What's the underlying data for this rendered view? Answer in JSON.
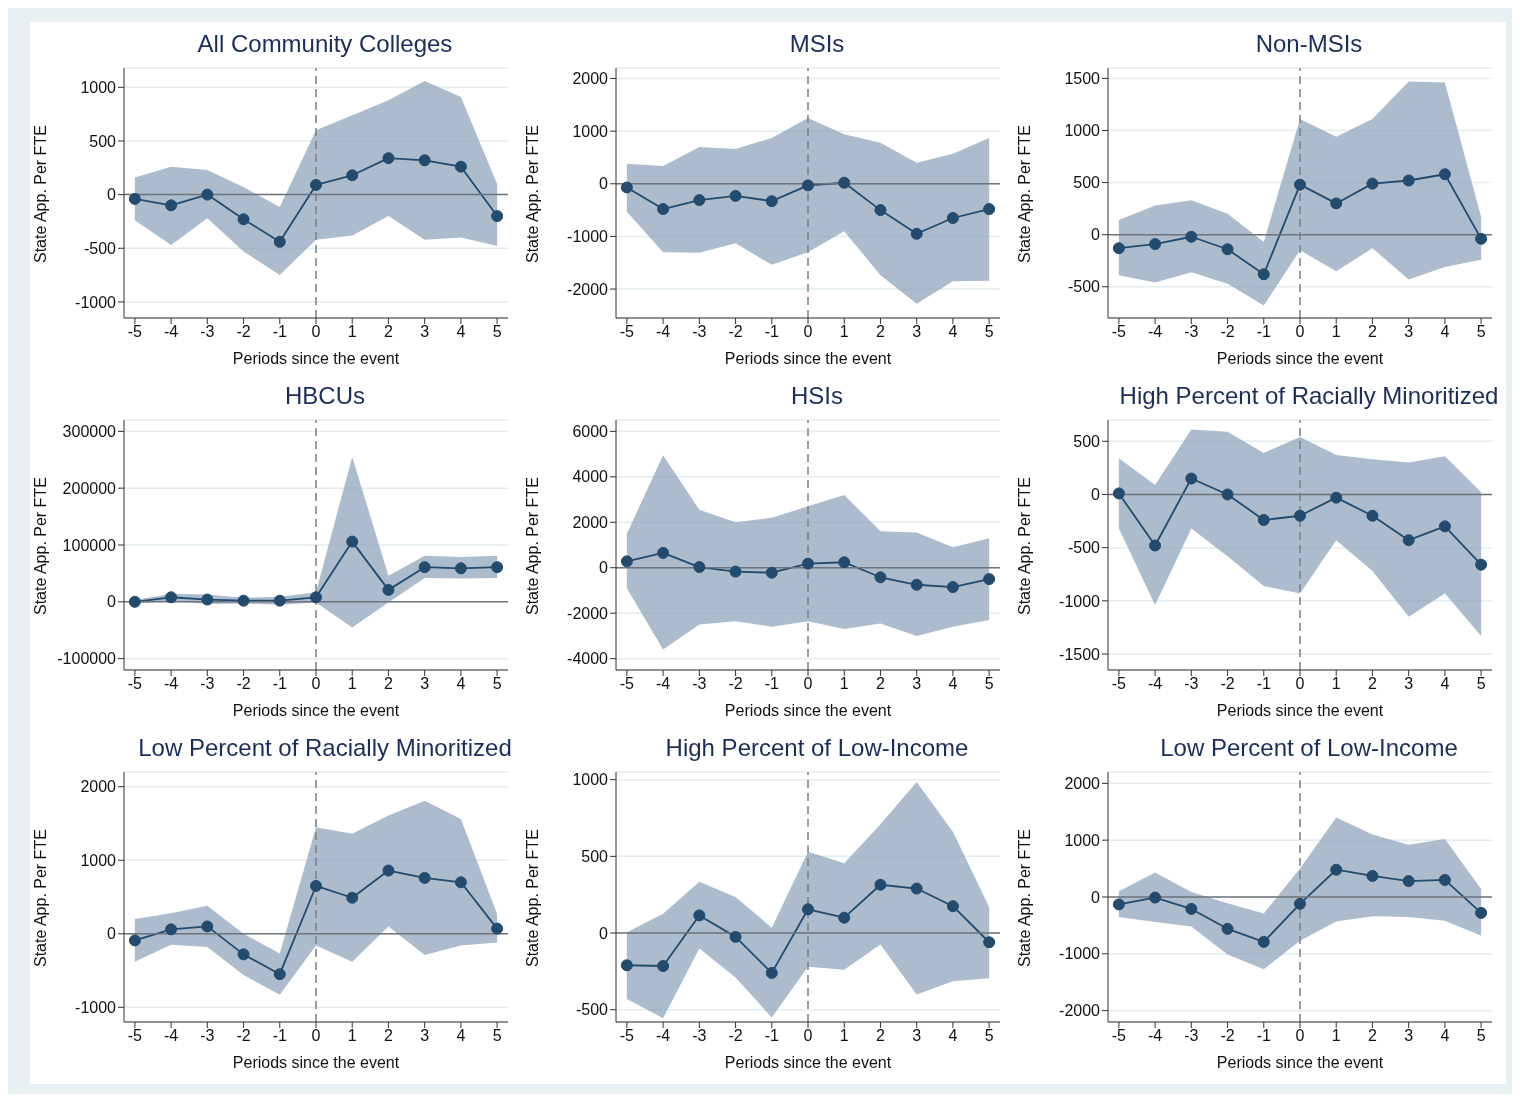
{
  "chart_data": [
    {
      "type": "line",
      "title": "All Community Colleges",
      "xlabel": "Periods since the event",
      "ylabel": "State App. Per FTE",
      "x": [
        -5,
        -4,
        -3,
        -2,
        -1,
        0,
        1,
        2,
        3,
        4,
        5
      ],
      "xlim": [
        -5.3,
        5.3
      ],
      "xticks": [
        -5,
        -4,
        -3,
        -2,
        -1,
        0,
        1,
        2,
        3,
        4,
        5
      ],
      "ylim": [
        -1150,
        1180
      ],
      "yticks": [
        -1000,
        -500,
        0,
        500,
        1000
      ],
      "grid": "y",
      "marker": "circle",
      "line_style": "solid",
      "ref_lines": [
        {
          "axis": "y",
          "value": 0,
          "color": "#6e7479",
          "line_style": "solid"
        },
        {
          "axis": "x",
          "value": 0,
          "color": "#7a7f84",
          "line_style": "dashed"
        }
      ],
      "series": [
        {
          "color": "#234b6e",
          "values": [
            -40,
            -100,
            0,
            -230,
            -440,
            90,
            180,
            340,
            320,
            260,
            -200
          ],
          "lower": [
            -240,
            -470,
            -220,
            -530,
            -750,
            -420,
            -380,
            -200,
            -420,
            -400,
            -480
          ],
          "upper": [
            160,
            260,
            230,
            70,
            -115,
            600,
            740,
            880,
            1060,
            910,
            100
          ]
        }
      ]
    },
    {
      "type": "line",
      "title": "MSIs",
      "xlabel": "Periods since the event",
      "ylabel": "State App. Per FTE",
      "x": [
        -5,
        -4,
        -3,
        -2,
        -1,
        0,
        1,
        2,
        3,
        4,
        5
      ],
      "xlim": [
        -5.3,
        5.3
      ],
      "xticks": [
        -5,
        -4,
        -3,
        -2,
        -1,
        0,
        1,
        2,
        3,
        4,
        5
      ],
      "ylim": [
        -2550,
        2200
      ],
      "yticks": [
        -2000,
        -1000,
        0,
        1000,
        2000
      ],
      "grid": "y",
      "marker": "circle",
      "line_style": "solid",
      "ref_lines": [
        {
          "axis": "y",
          "value": 0,
          "color": "#6e7479",
          "line_style": "solid"
        },
        {
          "axis": "x",
          "value": 0,
          "color": "#7a7f84",
          "line_style": "dashed"
        }
      ],
      "series": [
        {
          "color": "#234b6e",
          "values": [
            -70,
            -480,
            -310,
            -230,
            -330,
            -30,
            20,
            -500,
            -950,
            -650,
            -480
          ],
          "lower": [
            -530,
            -1300,
            -1310,
            -1130,
            -1540,
            -1300,
            -900,
            -1740,
            -2280,
            -1850,
            -1840
          ],
          "upper": [
            380,
            340,
            700,
            660,
            870,
            1250,
            940,
            780,
            400,
            570,
            870
          ]
        }
      ]
    },
    {
      "type": "line",
      "title": "Non-MSIs",
      "xlabel": "Periods since the event",
      "ylabel": "State App. Per FTE",
      "x": [
        -5,
        -4,
        -3,
        -2,
        -1,
        0,
        1,
        2,
        3,
        4,
        5
      ],
      "xlim": [
        -5.3,
        5.3
      ],
      "xticks": [
        -5,
        -4,
        -3,
        -2,
        -1,
        0,
        1,
        2,
        3,
        4,
        5
      ],
      "ylim": [
        -800,
        1600
      ],
      "yticks": [
        -500,
        0,
        500,
        1000,
        1500
      ],
      "grid": "y",
      "marker": "circle",
      "line_style": "solid",
      "ref_lines": [
        {
          "axis": "y",
          "value": 0,
          "color": "#6e7479",
          "line_style": "solid"
        },
        {
          "axis": "x",
          "value": 0,
          "color": "#7a7f84",
          "line_style": "dashed"
        }
      ],
      "series": [
        {
          "color": "#234b6e",
          "values": [
            -130,
            -90,
            -20,
            -140,
            -380,
            480,
            300,
            490,
            520,
            580,
            -40
          ],
          "lower": [
            -390,
            -460,
            -360,
            -470,
            -680,
            -150,
            -350,
            -130,
            -430,
            -310,
            -240
          ],
          "upper": [
            140,
            280,
            330,
            200,
            -70,
            1110,
            940,
            1110,
            1470,
            1460,
            170
          ]
        }
      ]
    },
    {
      "type": "line",
      "title": "HBCUs",
      "xlabel": "Periods since the event",
      "ylabel": "State App. Per FTE",
      "x": [
        -5,
        -4,
        -3,
        -2,
        -1,
        0,
        1,
        2,
        3,
        4,
        5
      ],
      "xlim": [
        -5.3,
        5.3
      ],
      "xticks": [
        -5,
        -4,
        -3,
        -2,
        -1,
        0,
        1,
        2,
        3,
        4,
        5
      ],
      "ylim": [
        -120000,
        320000
      ],
      "yticks": [
        -100000,
        0,
        100000,
        200000,
        300000
      ],
      "grid": "y",
      "marker": "circle",
      "line_style": "solid",
      "ref_lines": [
        {
          "axis": "y",
          "value": 0,
          "color": "#6e7479",
          "line_style": "solid"
        },
        {
          "axis": "x",
          "value": 0,
          "color": "#7a7f84",
          "line_style": "dashed"
        }
      ],
      "series": [
        {
          "color": "#234b6e",
          "values": [
            0,
            8000,
            4000,
            2000,
            2000,
            8000,
            106000,
            21000,
            61000,
            59000,
            61000
          ],
          "lower": [
            -3000,
            2000,
            -4000,
            -3000,
            -5000,
            -1000,
            -45000,
            -1000,
            42000,
            41000,
            42000
          ],
          "upper": [
            3000,
            14000,
            13000,
            7000,
            9000,
            17000,
            255000,
            46000,
            81000,
            79000,
            81000
          ]
        }
      ]
    },
    {
      "type": "line",
      "title": "HSIs",
      "xlabel": "Periods since the event",
      "ylabel": "State App. Per FTE",
      "x": [
        -5,
        -4,
        -3,
        -2,
        -1,
        0,
        1,
        2,
        3,
        4,
        5
      ],
      "xlim": [
        -5.3,
        5.3
      ],
      "xticks": [
        -5,
        -4,
        -3,
        -2,
        -1,
        0,
        1,
        2,
        3,
        4,
        5
      ],
      "ylim": [
        -4500,
        6500
      ],
      "yticks": [
        -4000,
        -2000,
        0,
        2000,
        4000,
        6000
      ],
      "grid": "y",
      "marker": "circle",
      "line_style": "solid",
      "ref_lines": [
        {
          "axis": "y",
          "value": 0,
          "color": "#6e7479",
          "line_style": "solid"
        },
        {
          "axis": "x",
          "value": 0,
          "color": "#7a7f84",
          "line_style": "dashed"
        }
      ],
      "series": [
        {
          "color": "#234b6e",
          "values": [
            280,
            650,
            30,
            -170,
            -220,
            180,
            240,
            -420,
            -750,
            -850,
            -500
          ],
          "lower": [
            -900,
            -3600,
            -2500,
            -2350,
            -2600,
            -2350,
            -2700,
            -2450,
            -3000,
            -2600,
            -2300
          ],
          "upper": [
            1500,
            4950,
            2550,
            2000,
            2200,
            2700,
            3200,
            1600,
            1550,
            900,
            1300
          ]
        }
      ]
    },
    {
      "type": "line",
      "title": "High Percent of Racially Minoritized",
      "xlabel": "Periods since the event",
      "ylabel": "State App. Per FTE",
      "x": [
        -5,
        -4,
        -3,
        -2,
        -1,
        0,
        1,
        2,
        3,
        4,
        5
      ],
      "xlim": [
        -5.3,
        5.3
      ],
      "xticks": [
        -5,
        -4,
        -3,
        -2,
        -1,
        0,
        1,
        2,
        3,
        4,
        5
      ],
      "ylim": [
        -1650,
        700
      ],
      "yticks": [
        -1500,
        -1000,
        -500,
        0,
        500
      ],
      "grid": "y",
      "marker": "circle",
      "line_style": "solid",
      "ref_lines": [
        {
          "axis": "y",
          "value": 0,
          "color": "#6e7479",
          "line_style": "solid"
        },
        {
          "axis": "x",
          "value": 0,
          "color": "#7a7f84",
          "line_style": "dashed"
        }
      ],
      "series": [
        {
          "color": "#234b6e",
          "values": [
            10,
            -480,
            150,
            0,
            -240,
            -200,
            -30,
            -200,
            -430,
            -300,
            -660
          ],
          "lower": [
            -320,
            -1040,
            -320,
            -580,
            -860,
            -930,
            -430,
            -720,
            -1150,
            -930,
            -1330
          ],
          "upper": [
            340,
            90,
            610,
            590,
            390,
            540,
            370,
            330,
            300,
            360,
            20
          ]
        }
      ]
    },
    {
      "type": "line",
      "title": "Low Percent of Racially Minoritized",
      "xlabel": "Periods since the event",
      "ylabel": "State App. Per FTE",
      "x": [
        -5,
        -4,
        -3,
        -2,
        -1,
        0,
        1,
        2,
        3,
        4,
        5
      ],
      "xlim": [
        -5.3,
        5.3
      ],
      "xticks": [
        -5,
        -4,
        -3,
        -2,
        -1,
        0,
        1,
        2,
        3,
        4,
        5
      ],
      "ylim": [
        -1200,
        2200
      ],
      "yticks": [
        -1000,
        0,
        1000,
        2000
      ],
      "grid": "y",
      "marker": "circle",
      "line_style": "solid",
      "ref_lines": [
        {
          "axis": "y",
          "value": 0,
          "color": "#6e7479",
          "line_style": "solid"
        },
        {
          "axis": "x",
          "value": 0,
          "color": "#7a7f84",
          "line_style": "dashed"
        }
      ],
      "series": [
        {
          "color": "#234b6e",
          "values": [
            -90,
            60,
            100,
            -280,
            -550,
            650,
            490,
            860,
            760,
            700,
            70
          ],
          "lower": [
            -380,
            -150,
            -180,
            -560,
            -830,
            -160,
            -380,
            100,
            -290,
            -160,
            -120
          ],
          "upper": [
            200,
            280,
            380,
            0,
            -270,
            1450,
            1360,
            1610,
            1810,
            1560,
            270
          ]
        }
      ]
    },
    {
      "type": "line",
      "title": "High Percent of Low-Income",
      "xlabel": "Periods since the event",
      "ylabel": "State App. Per FTE",
      "x": [
        -5,
        -4,
        -3,
        -2,
        -1,
        0,
        1,
        2,
        3,
        4,
        5
      ],
      "xlim": [
        -5.3,
        5.3
      ],
      "xticks": [
        -5,
        -4,
        -3,
        -2,
        -1,
        0,
        1,
        2,
        3,
        4,
        5
      ],
      "ylim": [
        -580,
        1050
      ],
      "yticks": [
        -500,
        0,
        500,
        1000
      ],
      "grid": "y",
      "marker": "circle",
      "line_style": "solid",
      "ref_lines": [
        {
          "axis": "y",
          "value": 0,
          "color": "#6e7479",
          "line_style": "solid"
        },
        {
          "axis": "x",
          "value": 0,
          "color": "#7a7f84",
          "line_style": "dashed"
        }
      ],
      "series": [
        {
          "color": "#234b6e",
          "values": [
            -210,
            -215,
            115,
            -25,
            -260,
            155,
            100,
            315,
            290,
            175,
            -60
          ],
          "lower": [
            -430,
            -555,
            -100,
            -290,
            -550,
            -220,
            -240,
            -75,
            -400,
            -315,
            -295
          ],
          "upper": [
            5,
            125,
            335,
            235,
            35,
            530,
            455,
            710,
            985,
            660,
            170
          ]
        }
      ]
    },
    {
      "type": "line",
      "title": "Low Percent of Low-Income",
      "xlabel": "Periods since the event",
      "ylabel": "State App. Per FTE",
      "x": [
        -5,
        -4,
        -3,
        -2,
        -1,
        0,
        1,
        2,
        3,
        4,
        5
      ],
      "xlim": [
        -5.3,
        5.3
      ],
      "xticks": [
        -5,
        -4,
        -3,
        -2,
        -1,
        0,
        1,
        2,
        3,
        4,
        5
      ],
      "ylim": [
        -2200,
        2200
      ],
      "yticks": [
        -2000,
        -1000,
        0,
        1000,
        2000
      ],
      "grid": "y",
      "marker": "circle",
      "line_style": "solid",
      "ref_lines": [
        {
          "axis": "y",
          "value": 0,
          "color": "#6e7479",
          "line_style": "solid"
        },
        {
          "axis": "x",
          "value": 0,
          "color": "#7a7f84",
          "line_style": "dashed"
        }
      ],
      "series": [
        {
          "color": "#234b6e",
          "values": [
            -130,
            -10,
            -210,
            -560,
            -790,
            -120,
            480,
            370,
            280,
            300,
            -280
          ],
          "lower": [
            -350,
            -440,
            -520,
            -1010,
            -1270,
            -770,
            -430,
            -340,
            -350,
            -420,
            -680
          ],
          "upper": [
            100,
            430,
            90,
            -110,
            -290,
            500,
            1400,
            1100,
            920,
            1020,
            140
          ]
        }
      ]
    }
  ]
}
